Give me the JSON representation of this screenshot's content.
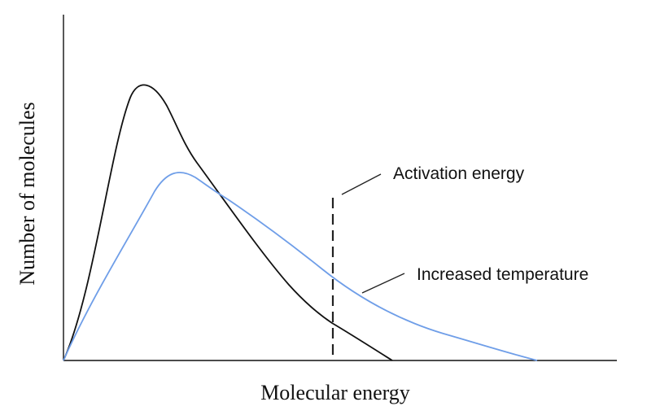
{
  "diagram": {
    "x_axis_title": "Molecular energy",
    "y_axis_title": "Number of molecules",
    "annotations": {
      "activation_energy": "Activation energy",
      "increased_temperature": "Increased temperature"
    },
    "colors": {
      "axis": "#111111",
      "original_curve": "#111111",
      "increased_temperature_curve": "#6f9ee8",
      "threshold_line": "#222222"
    }
  }
}
